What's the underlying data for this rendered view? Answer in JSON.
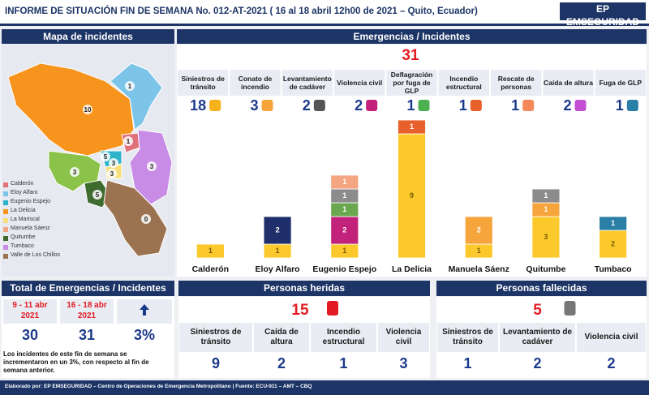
{
  "header": {
    "title": "INFORME DE SITUACIÓN FIN DE SEMANA No. 012-AT-2021 ( 16 al 18 abril 12h00 de 2021 – Quito, Ecuador)",
    "logo": "EP EMSEGURIDAD"
  },
  "map": {
    "title": "Mapa de incidentes",
    "labels": [
      1,
      10,
      1,
      5,
      3,
      3,
      3,
      3,
      5,
      0
    ],
    "legend": [
      {
        "name": "Calderón",
        "color": "#e0707a"
      },
      {
        "name": "Eloy Alfaro",
        "color": "#7cc4e8"
      },
      {
        "name": "Eugenio Espejo",
        "color": "#2fb3c9"
      },
      {
        "name": "La Delicia",
        "color": "#f7941d"
      },
      {
        "name": "La Mariscal",
        "color": "#f7e07a"
      },
      {
        "name": "Manuela Sáenz",
        "color": "#f4a582"
      },
      {
        "name": "Quitumbe",
        "color": "#3e6b2e"
      },
      {
        "name": "Tumbaco",
        "color": "#c88ce6"
      },
      {
        "name": "Valle de Los Chillos",
        "color": "#9c7350"
      }
    ]
  },
  "emergencies": {
    "title": "Emergencias / Incidentes",
    "total": 31,
    "types": [
      {
        "name": "Siniestros de tránsito",
        "count": 18
      },
      {
        "name": "Conato de incendio",
        "count": 3
      },
      {
        "name": "Levantamiento de cadáver",
        "count": 2
      },
      {
        "name": "Violencia civil",
        "count": 2
      },
      {
        "name": "Deflagración por fuga de GLP",
        "count": 1
      },
      {
        "name": "Incendio estructural",
        "count": 1
      },
      {
        "name": "Rescate de personas",
        "count": 1
      },
      {
        "name": "Caída de altura",
        "count": 2
      },
      {
        "name": "Fuga de GLP",
        "count": 1
      }
    ]
  },
  "chart_data": {
    "type": "bar",
    "stacked": true,
    "categories": [
      "Calderón",
      "Eloy Alfaro",
      "Eugenio Espejo",
      "La Delicia",
      "Manuela Sáenz",
      "Quitumbe",
      "Tumbaco"
    ],
    "series": [
      {
        "color": "#fbc92c",
        "values": [
          1,
          1,
          1,
          9,
          1,
          3,
          2
        ]
      },
      {
        "color": "#f6a43c",
        "values": [
          null,
          null,
          null,
          null,
          2,
          1,
          null
        ]
      },
      {
        "color": "#1f2f6b",
        "values": [
          null,
          2,
          null,
          null,
          null,
          null,
          null
        ]
      },
      {
        "color": "#c2227a",
        "values": [
          null,
          null,
          2,
          null,
          null,
          null,
          null
        ]
      },
      {
        "color": "#6aa84f",
        "values": [
          null,
          null,
          1,
          null,
          null,
          null,
          null
        ]
      },
      {
        "color": "#8c8c8c",
        "values": [
          null,
          null,
          1,
          null,
          null,
          1,
          null
        ]
      },
      {
        "color": "#f4a582",
        "values": [
          null,
          null,
          1,
          null,
          null,
          null,
          null
        ]
      },
      {
        "color": "#e8602c",
        "values": [
          null,
          null,
          null,
          1,
          null,
          null,
          null
        ]
      },
      {
        "color": "#2a7fa6",
        "values": [
          null,
          null,
          null,
          null,
          null,
          null,
          1
        ]
      }
    ]
  },
  "summary": {
    "title": "Total de Emergencias / Incidentes",
    "periods": [
      {
        "dates": "9 - 11 abr",
        "year": "2021",
        "total": 30
      },
      {
        "dates": "16 - 18 abr",
        "year": "2021",
        "total": 31
      }
    ],
    "change": "3%",
    "note": "Los incidentes de este fin de semana se incrementaron en un 3%, con respecto al fin de semana anterior."
  },
  "injured": {
    "title": "Personas heridas",
    "total": 15,
    "types": [
      {
        "name": "Siniestros de tránsito",
        "count": 9
      },
      {
        "name": "Caída de altura",
        "count": 2
      },
      {
        "name": "Incendio estructural",
        "count": 1
      },
      {
        "name": "Violencia civil",
        "count": 3
      }
    ]
  },
  "deceased": {
    "title": "Personas fallecidas",
    "total": 5,
    "types": [
      {
        "name": "Siniestros de tránsito",
        "count": 1
      },
      {
        "name": "Levantamiento de cadáver",
        "count": 2
      },
      {
        "name": "Violencia civil",
        "count": 2
      }
    ]
  },
  "footer": "Elaborado por: EP EMSEGURIDAD – Centro de Operaciones de Emergencia Metropolitano | Fuente: ECU-911 – AMT – CBQ"
}
